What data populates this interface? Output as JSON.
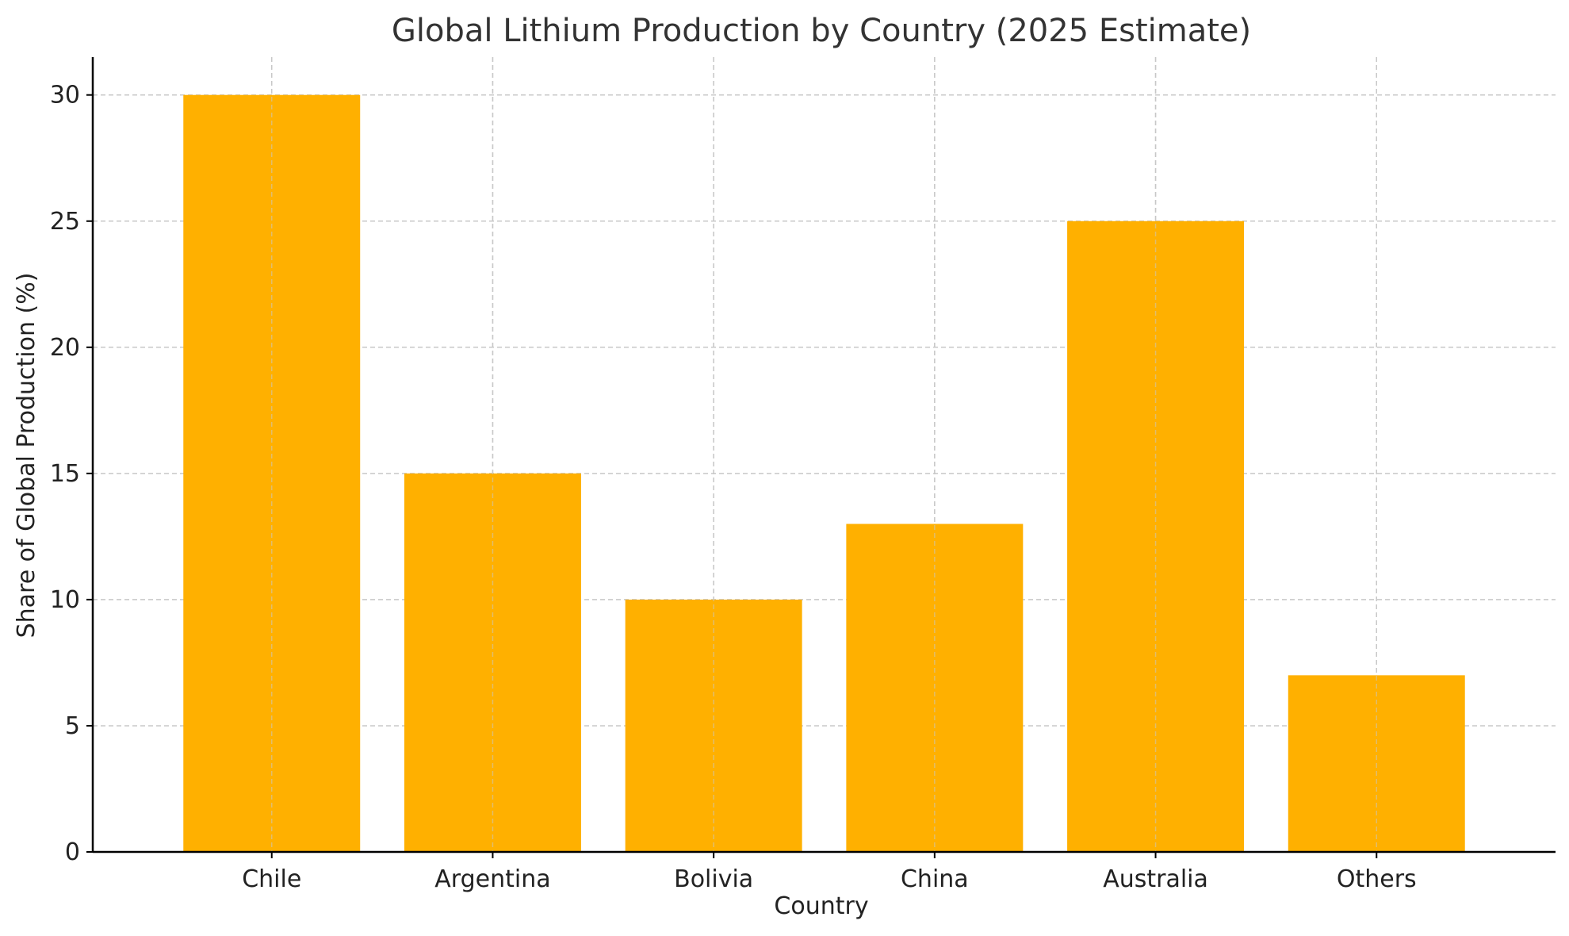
{
  "chart_data": {
    "type": "bar",
    "title": "Global Lithium Production by Country (2025 Estimate)",
    "xlabel": "Country",
    "ylabel": "Share of Global Production (%)",
    "categories": [
      "Chile",
      "Argentina",
      "Bolivia",
      "China",
      "Australia",
      "Others"
    ],
    "values": [
      30,
      15,
      10,
      13,
      25,
      7
    ],
    "ylim": [
      0,
      31.5
    ],
    "yticks": [
      0,
      5,
      10,
      15,
      20,
      25,
      30
    ],
    "grid": true,
    "bar_color": "#FFB000"
  }
}
